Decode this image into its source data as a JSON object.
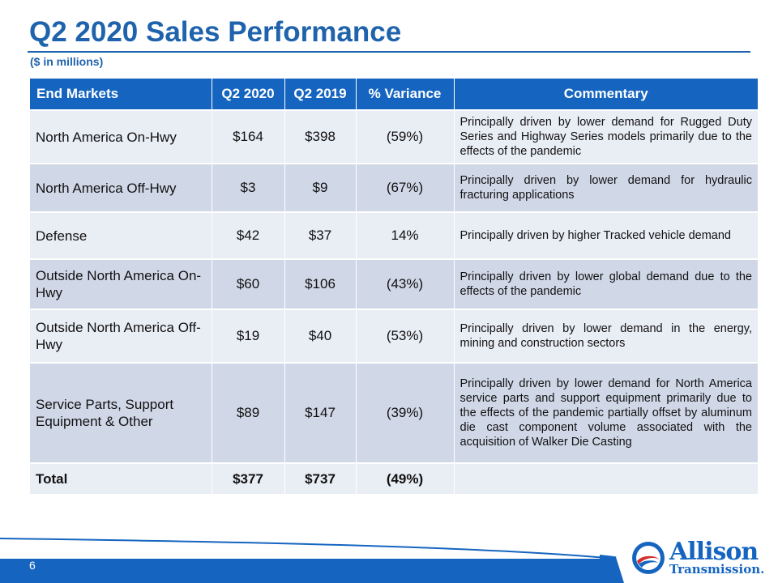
{
  "header": {
    "title": "Q2 2020 Sales Performance",
    "subtitle": "($ in millions)"
  },
  "table": {
    "columns": [
      "End Markets",
      "Q2 2020",
      "Q2 2019",
      "% Variance",
      "Commentary"
    ],
    "rows": [
      {
        "market": "North America On-Hwy",
        "q2_2020": "$164",
        "q2_2019": "$398",
        "variance": "(59%)",
        "commentary": "Principally driven by lower demand for Rugged Duty Series and Highway Series models primarily due to the effects of the pandemic"
      },
      {
        "market": "North America Off-Hwy",
        "q2_2020": "$3",
        "q2_2019": "$9",
        "variance": "(67%)",
        "commentary": "Principally driven by lower demand for hydraulic fracturing applications"
      },
      {
        "market": "Defense",
        "q2_2020": "$42",
        "q2_2019": "$37",
        "variance": "14%",
        "commentary": "Principally driven by higher Tracked vehicle demand"
      },
      {
        "market": "Outside North America On-Hwy",
        "q2_2020": "$60",
        "q2_2019": "$106",
        "variance": "(43%)",
        "commentary": "Principally driven by lower global demand due to the effects of the pandemic"
      },
      {
        "market": "Outside North America Off-Hwy",
        "q2_2020": "$19",
        "q2_2019": "$40",
        "variance": "(53%)",
        "commentary": "Principally driven by lower demand in the energy, mining and construction sectors"
      },
      {
        "market": "Service Parts, Support Equipment & Other",
        "q2_2020": "$89",
        "q2_2019": "$147",
        "variance": "(39%)",
        "commentary": "Principally driven by lower demand for North America service parts and support equipment primarily due to the effects of the pandemic partially offset by aluminum die cast component volume associated with the acquisition of Walker Die Casting"
      }
    ],
    "total": {
      "market": "Total",
      "q2_2020": "$377",
      "q2_2019": "$737",
      "variance": "(49%)",
      "commentary": ""
    }
  },
  "footer": {
    "page_number": "6",
    "logo_line1": "Allison",
    "logo_line2": "Transmission."
  },
  "colors": {
    "brand_blue": "#1565c0",
    "row_light": "#e9edf4",
    "row_dark": "#d0d8e8"
  }
}
